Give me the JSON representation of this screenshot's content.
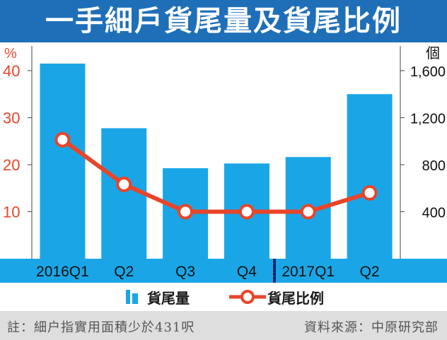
{
  "title": "一手細戶貨尾量及貨尾比例",
  "colors": {
    "title_bg": "#1f6fb8",
    "bar": "#1aa6e6",
    "line": "#e8452a",
    "axis_band": "#1aa6e6",
    "tick_pct": "#e8452a",
    "footer_bg": "#dedede"
  },
  "chart_data": {
    "type": "bar",
    "categories": [
      "2016Q1",
      "Q2",
      "Q3",
      "Q4",
      "2017Q1",
      "Q2"
    ],
    "y_left": {
      "unit": "%",
      "ticks": [
        "10",
        "20",
        "30",
        "40"
      ],
      "tick_values": [
        10,
        20,
        30,
        40
      ],
      "ylim": [
        0,
        46
      ]
    },
    "y_right": {
      "unit": "個",
      "ticks": [
        "400",
        "800",
        "1,200",
        "1,600"
      ],
      "tick_values": [
        400,
        800,
        1200,
        1600
      ],
      "ylim": [
        0,
        1840
      ]
    },
    "series": [
      {
        "name": "貨尾量",
        "type": "bar",
        "axis": "right",
        "values": [
          1660,
          1110,
          770,
          810,
          865,
          1400
        ]
      },
      {
        "name": "貨尾比例",
        "type": "line",
        "axis": "left",
        "values": [
          25.3,
          15.8,
          10,
          10,
          10,
          14
        ]
      }
    ],
    "legend_position": "bottom",
    "grid": false
  },
  "footer": {
    "note": "註：細户指實用面積少於431呎",
    "source": "資料來源：中原研究部"
  }
}
